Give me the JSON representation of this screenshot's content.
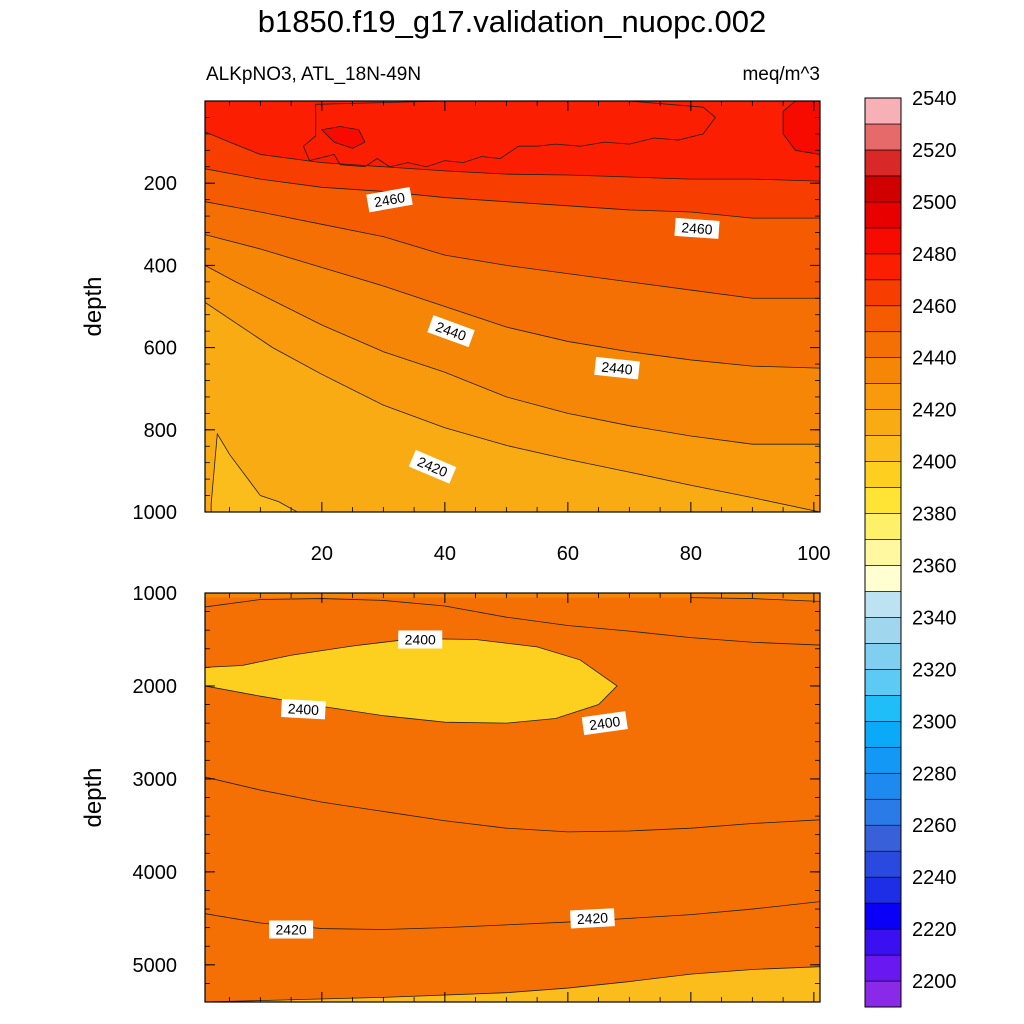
{
  "title": "b1850.f19_g17.validation_nuopc.002",
  "subtitle_left": "ALKpNO3, ATL_18N-49N",
  "subtitle_right": "meq/m^3",
  "chart_data": [
    {
      "type": "contour",
      "panel": "upper",
      "ylabel": "depth",
      "xlabel": "",
      "xlim": [
        1,
        101
      ],
      "ylim": [
        1000,
        0
      ],
      "x_ticks": [
        20,
        40,
        60,
        80,
        100
      ],
      "y_ticks": [
        200,
        400,
        600,
        800,
        1000
      ],
      "contour_labels": [
        {
          "text": "2460",
          "x": 31,
          "y": 240,
          "angle": -10
        },
        {
          "text": "2460",
          "x": 81,
          "y": 310,
          "angle": 4
        },
        {
          "text": "2440",
          "x": 41,
          "y": 560,
          "angle": 20
        },
        {
          "text": "2440",
          "x": 68,
          "y": 650,
          "angle": 6
        },
        {
          "text": "2420",
          "x": 38,
          "y": 890,
          "angle": 23
        }
      ],
      "contours": [
        {
          "level": 2400,
          "points": [
            [
              2,
              1000
            ],
            [
              2,
              980
            ],
            [
              3,
              810
            ],
            [
              5,
              860
            ],
            [
              8,
              920
            ],
            [
              10,
              960
            ],
            [
              13,
              975
            ],
            [
              16,
              1000
            ]
          ]
        },
        {
          "level": 2410,
          "points": [
            [
              1,
              490
            ],
            [
              6,
              540
            ],
            [
              12,
              600
            ],
            [
              20,
              665
            ],
            [
              30,
              740
            ],
            [
              40,
              795
            ],
            [
              50,
              838
            ],
            [
              60,
              872
            ],
            [
              70,
              903
            ],
            [
              80,
              935
            ],
            [
              90,
              965
            ],
            [
              101,
              1000
            ]
          ]
        },
        {
          "level": 2420,
          "points": [
            [
              1,
              400
            ],
            [
              6,
              440
            ],
            [
              12,
              485
            ],
            [
              20,
              545
            ],
            [
              30,
              610
            ],
            [
              40,
              660
            ],
            [
              50,
              720
            ],
            [
              60,
              760
            ],
            [
              70,
              790
            ],
            [
              80,
              815
            ],
            [
              90,
              835
            ],
            [
              101,
              835
            ]
          ]
        },
        {
          "level": 2430,
          "points": [
            [
              1,
              325
            ],
            [
              10,
              360
            ],
            [
              20,
              405
            ],
            [
              30,
              450
            ],
            [
              40,
              500
            ],
            [
              50,
              550
            ],
            [
              60,
              585
            ],
            [
              70,
              610
            ],
            [
              80,
              630
            ],
            [
              90,
              645
            ],
            [
              101,
              650
            ]
          ]
        },
        {
          "level": 2440,
          "points": [
            [
              1,
              245
            ],
            [
              10,
              270
            ],
            [
              20,
              300
            ],
            [
              30,
              330
            ],
            [
              40,
              375
            ],
            [
              50,
              400
            ],
            [
              60,
              420
            ],
            [
              70,
              440
            ],
            [
              80,
              460
            ],
            [
              90,
              480
            ],
            [
              101,
              480
            ]
          ]
        },
        {
          "level": 2450,
          "points": [
            [
              1,
              165
            ],
            [
              10,
              190
            ],
            [
              20,
              210
            ],
            [
              30,
              220
            ],
            [
              40,
              235
            ],
            [
              50,
              245
            ],
            [
              60,
              255
            ],
            [
              70,
              265
            ],
            [
              80,
              270
            ],
            [
              90,
              285
            ],
            [
              101,
              285
            ]
          ]
        },
        {
          "level": 2460,
          "points": [
            [
              1,
              75
            ],
            [
              5,
              100
            ],
            [
              10,
              130
            ],
            [
              20,
              150
            ],
            [
              30,
              160
            ],
            [
              40,
              170
            ],
            [
              50,
              178
            ],
            [
              60,
              180
            ],
            [
              70,
              185
            ],
            [
              80,
              190
            ],
            [
              90,
              190
            ],
            [
              101,
              195
            ]
          ]
        },
        {
          "level": 2470,
          "polygon": true,
          "points": [
            [
              19,
              85
            ],
            [
              17,
              110
            ],
            [
              18,
              145
            ],
            [
              22,
              130
            ],
            [
              23,
              155
            ],
            [
              27,
              160
            ],
            [
              29,
              140
            ],
            [
              31,
              160
            ],
            [
              34,
              150
            ],
            [
              37,
              160
            ],
            [
              40,
              145
            ],
            [
              43,
              150
            ],
            [
              46,
              135
            ],
            [
              49,
              140
            ],
            [
              52,
              110
            ],
            [
              55,
              110
            ],
            [
              58,
              105
            ],
            [
              62,
              110
            ],
            [
              66,
              100
            ],
            [
              70,
              105
            ],
            [
              74,
              90
            ],
            [
              78,
              95
            ],
            [
              82,
              80
            ],
            [
              84,
              40
            ],
            [
              82,
              15
            ],
            [
              70,
              0
            ],
            [
              40,
              0
            ],
            [
              19,
              8
            ]
          ]
        },
        {
          "level": 2480,
          "polygon": true,
          "points": [
            [
              95,
              25
            ],
            [
              95,
              80
            ],
            [
              97,
              120
            ],
            [
              101,
              130
            ],
            [
              101,
              0
            ],
            [
              97,
              0
            ]
          ]
        },
        {
          "level": 2480,
          "polygon": true,
          "points": [
            [
              20,
              70
            ],
            [
              22,
              100
            ],
            [
              25,
              115
            ],
            [
              27,
              100
            ],
            [
              26,
              70
            ],
            [
              23,
              62
            ]
          ]
        }
      ]
    },
    {
      "type": "contour",
      "panel": "lower",
      "ylabel": "depth",
      "xlabel": "",
      "xlim": [
        1,
        101
      ],
      "ylim": [
        5400,
        1000
      ],
      "x_ticks": [],
      "y_ticks": [
        1000,
        2000,
        3000,
        4000,
        5000
      ],
      "contour_labels": [
        {
          "text": "2400",
          "x": 36,
          "y": 1500,
          "angle": 0
        },
        {
          "text": "2400",
          "x": 17,
          "y": 2250,
          "angle": 3
        },
        {
          "text": "2400",
          "x": 66,
          "y": 2400,
          "angle": -8
        },
        {
          "text": "2420",
          "x": 15,
          "y": 4620,
          "angle": 0
        },
        {
          "text": "2420",
          "x": 64,
          "y": 4500,
          "angle": -3
        }
      ],
      "contours": [
        {
          "level": 2400,
          "points": [
            [
              1,
              1150
            ],
            [
              10,
              1070
            ],
            [
              20,
              1060
            ],
            [
              30,
              1080
            ],
            [
              40,
              1140
            ],
            [
              50,
              1260
            ],
            [
              60,
              1350
            ],
            [
              70,
              1410
            ],
            [
              80,
              1480
            ],
            [
              90,
              1530
            ],
            [
              101,
              1560
            ]
          ]
        },
        {
          "level": 2390,
          "polygon": true,
          "points": [
            [
              1,
              1800
            ],
            [
              7,
              1780
            ],
            [
              15,
              1670
            ],
            [
              25,
              1570
            ],
            [
              35,
              1490
            ],
            [
              45,
              1500
            ],
            [
              55,
              1580
            ],
            [
              62,
              1720
            ],
            [
              68,
              2000
            ],
            [
              65,
              2200
            ],
            [
              58,
              2350
            ],
            [
              50,
              2400
            ],
            [
              40,
              2390
            ],
            [
              30,
              2320
            ],
            [
              20,
              2220
            ],
            [
              10,
              2110
            ],
            [
              1,
              2000
            ]
          ]
        },
        {
          "level": 2410,
          "points": [
            [
              1,
              2980
            ],
            [
              10,
              3120
            ],
            [
              20,
              3250
            ],
            [
              30,
              3350
            ],
            [
              40,
              3450
            ],
            [
              50,
              3530
            ],
            [
              60,
              3570
            ],
            [
              70,
              3560
            ],
            [
              80,
              3530
            ],
            [
              90,
              3480
            ],
            [
              101,
              3440
            ]
          ]
        },
        {
          "level": 2420,
          "points": [
            [
              1,
              4450
            ],
            [
              10,
              4550
            ],
            [
              20,
              4610
            ],
            [
              30,
              4620
            ],
            [
              40,
              4600
            ],
            [
              50,
              4570
            ],
            [
              60,
              4540
            ],
            [
              70,
              4500
            ],
            [
              80,
              4460
            ],
            [
              90,
              4400
            ],
            [
              101,
              4320
            ]
          ]
        },
        {
          "level": 2430,
          "points": [
            [
              1,
              5400
            ],
            [
              30,
              5350
            ],
            [
              50,
              5300
            ],
            [
              60,
              5250
            ],
            [
              70,
              5180
            ],
            [
              80,
              5100
            ],
            [
              90,
              5050
            ],
            [
              101,
              5020
            ]
          ]
        },
        {
          "level": 2410,
          "points": [
            [
              1,
              1000
            ],
            [
              1,
              1030
            ]
          ]
        },
        {
          "level": 2420,
          "points": [
            [
              80,
              1050
            ],
            [
              90,
              1060
            ],
            [
              101,
              1090
            ]
          ]
        }
      ]
    },
    {
      "type": "colorbar",
      "ticks": [
        2200,
        2220,
        2240,
        2260,
        2280,
        2300,
        2320,
        2340,
        2360,
        2380,
        2400,
        2420,
        2440,
        2460,
        2480,
        2500,
        2520,
        2540
      ],
      "range": [
        2190,
        2560
      ],
      "step": 10,
      "colors": [
        "#8a2ae8",
        "#6a18f0",
        "#3a10f0",
        "#0a00f8",
        "#1e2ee6",
        "#2a4adf",
        "#3860d8",
        "#2a7ae8",
        "#1e8af0",
        "#1498f5",
        "#0aaaf8",
        "#20bef8",
        "#5ccaf5",
        "#80cef0",
        "#a0d6ee",
        "#bde2f2",
        "#ffffd2",
        "#fff8a0",
        "#fff06a",
        "#ffe436",
        "#fdd020",
        "#fbbd1c",
        "#f9ab14",
        "#f89a0c",
        "#f68606",
        "#f47004",
        "#f55c02",
        "#f73e00",
        "#fb1e00",
        "#f70a00",
        "#e80000",
        "#d00000",
        "#d82828",
        "#e66a6a",
        "#f6b0b6"
      ]
    }
  ]
}
